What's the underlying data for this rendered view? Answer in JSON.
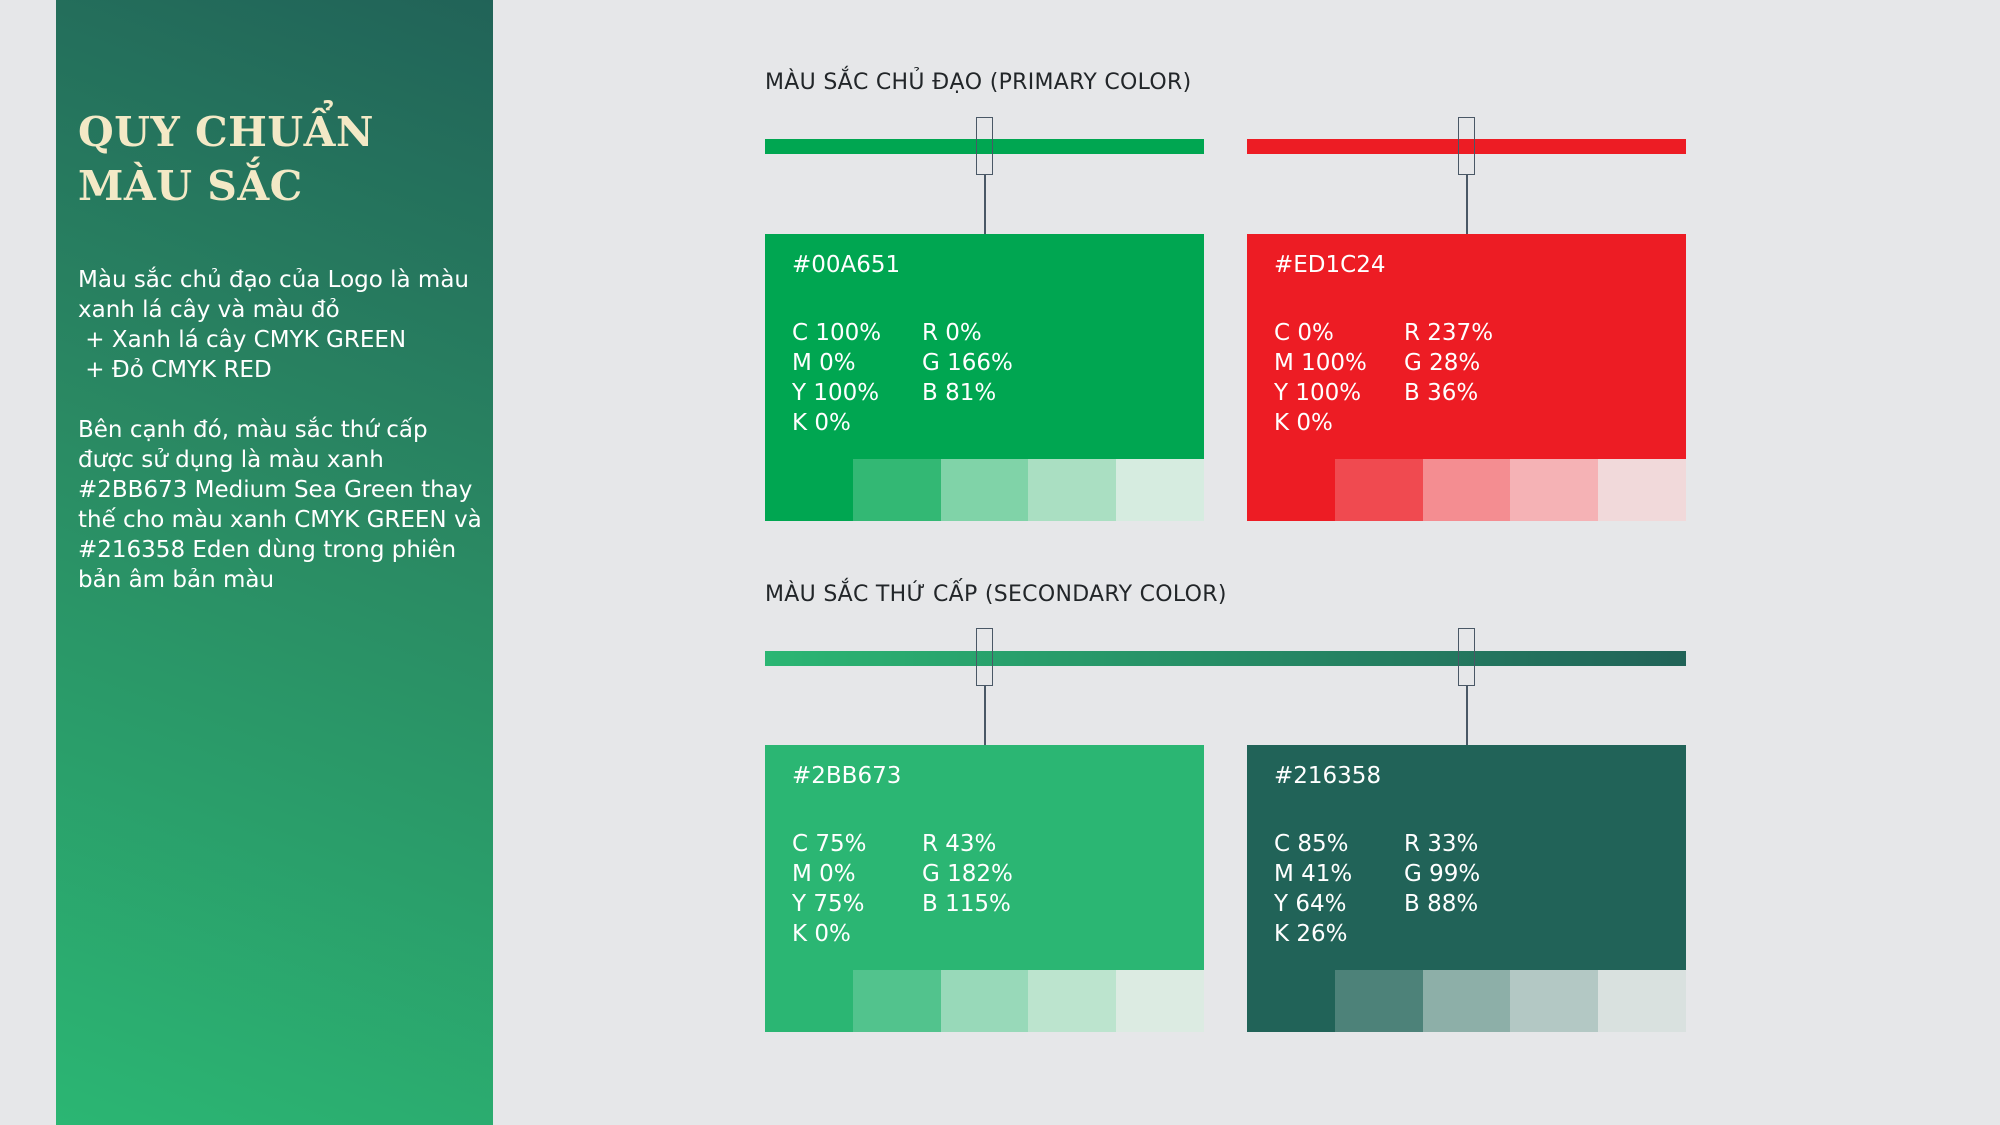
{
  "sidebar": {
    "title_line1": "QUY CHUẨN",
    "title_line2": "MÀU SẮC",
    "para1": [
      "Màu sắc chủ đạo của Logo là màu",
      "xanh lá cây và màu đỏ",
      " + Xanh lá cây CMYK GREEN",
      " + Đỏ CMYK RED"
    ],
    "para2": [
      "Bên cạnh đó, màu sắc thứ cấp",
      "được sử dụng là màu xanh",
      "#2BB673 Medium Sea Green thay",
      "thế cho màu xanh CMYK GREEN và",
      "#216358 Eden dùng trong phiên",
      "bản âm bản màu"
    ]
  },
  "primary": {
    "label": "MÀU SẮC CHỦ ĐẠO (PRIMARY COLOR)",
    "cards": [
      {
        "hex": "#00A651",
        "cmyk": [
          "C 100%",
          "M 0%",
          "Y 100%",
          "K 0%"
        ],
        "rgb": [
          "R 0%",
          "G 166%",
          "B 81%"
        ],
        "color": "#00a651",
        "tints": [
          "#00a651",
          "#33b874",
          "#80d3a8",
          "#aadfc2",
          "#d6ece0"
        ]
      },
      {
        "hex": "#ED1C24",
        "cmyk": [
          "C 0%",
          "M 100%",
          "Y 100%",
          "K 0%"
        ],
        "rgb": [
          "R 237%",
          "G 28%",
          "B 36%"
        ],
        "color": "#ed1c24",
        "tints": [
          "#ed1c24",
          "#f04a50",
          "#f48d91",
          "#f5b2b5",
          "#f1d9da"
        ]
      }
    ]
  },
  "secondary": {
    "label": "MÀU SẮC THỨ CẤP (SECONDARY COLOR)",
    "cards": [
      {
        "hex": "#2BB673",
        "cmyk": [
          "C 75%",
          "M 0%",
          "Y 75%",
          "K 0%"
        ],
        "rgb": [
          "R 43%",
          "G 182%",
          "B 115%"
        ],
        "color": "#2bb673",
        "tints": [
          "#2bb673",
          "#52c38d",
          "#98d9b9",
          "#bce4ce",
          "#dcebe2"
        ]
      },
      {
        "hex": "#216358",
        "cmyk": [
          "C 85%",
          "M 41%",
          "Y 64%",
          "K 26%"
        ],
        "rgb": [
          "R 33%",
          "G 99%",
          "B 88%"
        ],
        "color": "#216358",
        "tints": [
          "#216358",
          "#4d8279",
          "#8dafa8",
          "#b3c8c4",
          "#d9e1df"
        ]
      }
    ]
  }
}
